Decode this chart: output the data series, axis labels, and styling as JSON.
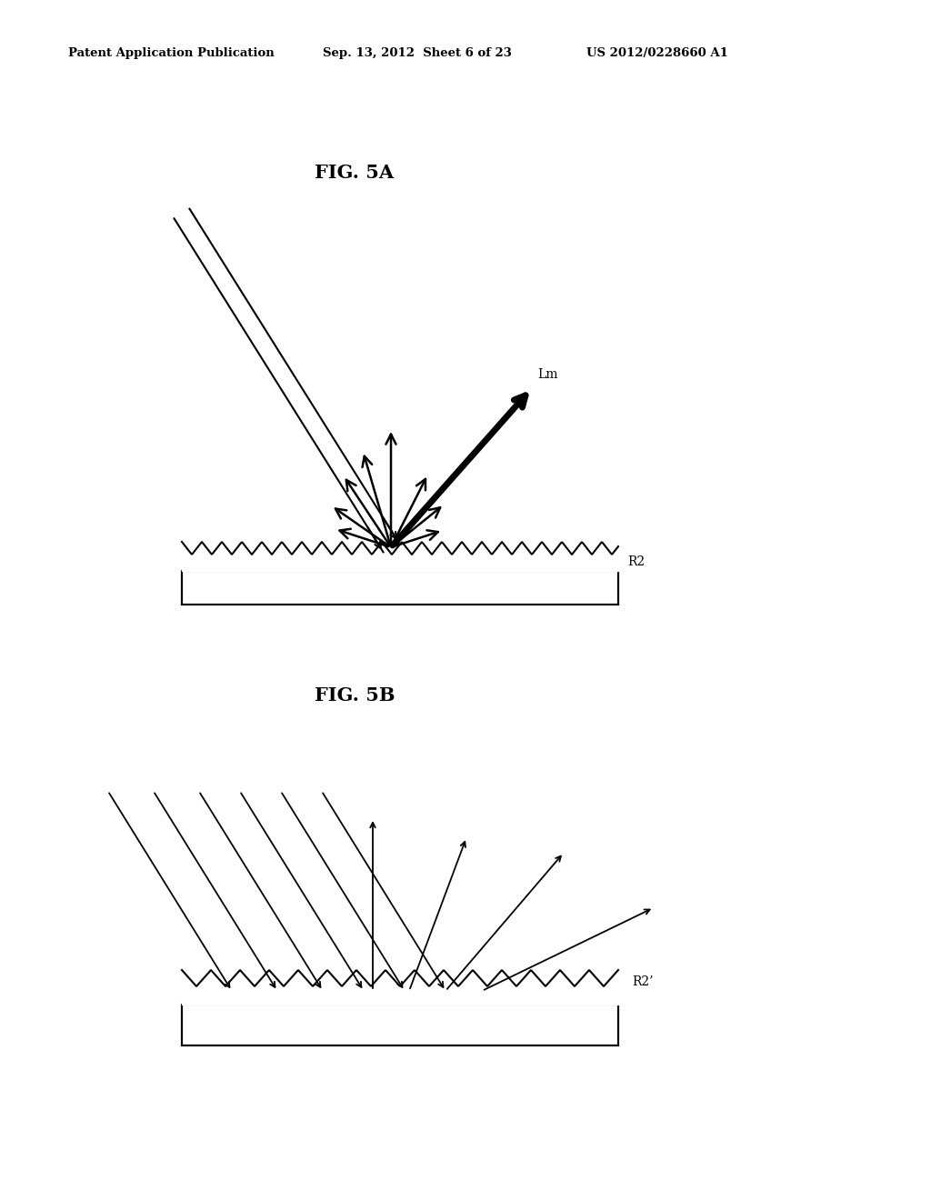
{
  "header_left": "Patent Application Publication",
  "header_center": "Sep. 13, 2012  Sheet 6 of 23",
  "header_right": "US 2012/0228660 A1",
  "fig5a_label": "FIG. 5A",
  "fig5b_label": "FIG. 5B",
  "label_lm": "Lm",
  "label_r2": "R2",
  "label_r2p": "R2’",
  "bg_color": "#ffffff"
}
